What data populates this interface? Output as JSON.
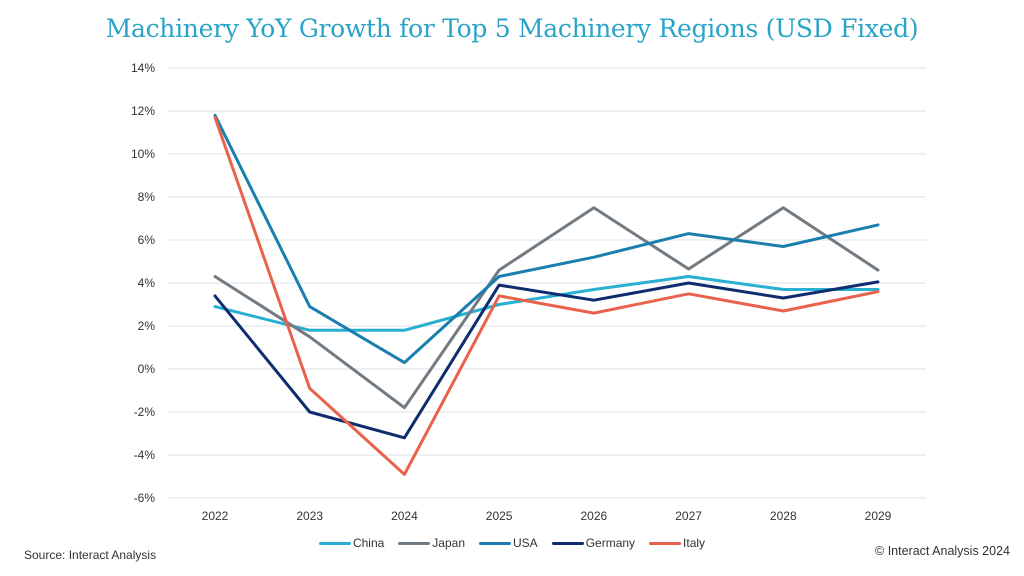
{
  "chart_data": {
    "type": "line",
    "title": "Machinery YoY Growth for Top 5 Machinery Regions (USD Fixed)",
    "xlabel": "",
    "ylabel": "",
    "x": [
      "2022",
      "2023",
      "2024",
      "2025",
      "2026",
      "2027",
      "2028",
      "2029"
    ],
    "ylim": [
      -6,
      14
    ],
    "yticks": [
      14,
      12,
      10,
      8,
      6,
      4,
      2,
      0,
      -2,
      -4,
      -6
    ],
    "ytick_labels": [
      "14%",
      "12%",
      "10%",
      "8%",
      "6%",
      "4%",
      "2%",
      "0%",
      "-2%",
      "-4%",
      "-6%"
    ],
    "grid": true,
    "legend_position": "bottom",
    "series": [
      {
        "name": "China",
        "color": "#29afd1",
        "values": [
          2.9,
          1.8,
          1.8,
          3.0,
          3.7,
          4.3,
          3.7,
          3.7
        ]
      },
      {
        "name": "Japan",
        "color": "#737b82",
        "values": [
          4.3,
          1.5,
          -1.8,
          4.6,
          7.5,
          4.65,
          7.5,
          4.6
        ]
      },
      {
        "name": "USA",
        "color": "#1a7fad",
        "values": [
          11.8,
          2.9,
          0.3,
          4.3,
          5.2,
          6.3,
          5.7,
          6.7
        ]
      },
      {
        "name": "Germany",
        "color": "#0f2c6e",
        "values": [
          3.4,
          -2.0,
          -3.2,
          3.9,
          3.2,
          4.0,
          3.3,
          4.05
        ]
      },
      {
        "name": "Italy",
        "color": "#e8624c",
        "values": [
          11.7,
          -0.9,
          -4.9,
          3.4,
          2.6,
          3.5,
          2.7,
          3.6
        ]
      }
    ]
  },
  "footer": {
    "source": "Source: Interact Analysis",
    "copyright": "© Interact Analysis 2024"
  }
}
